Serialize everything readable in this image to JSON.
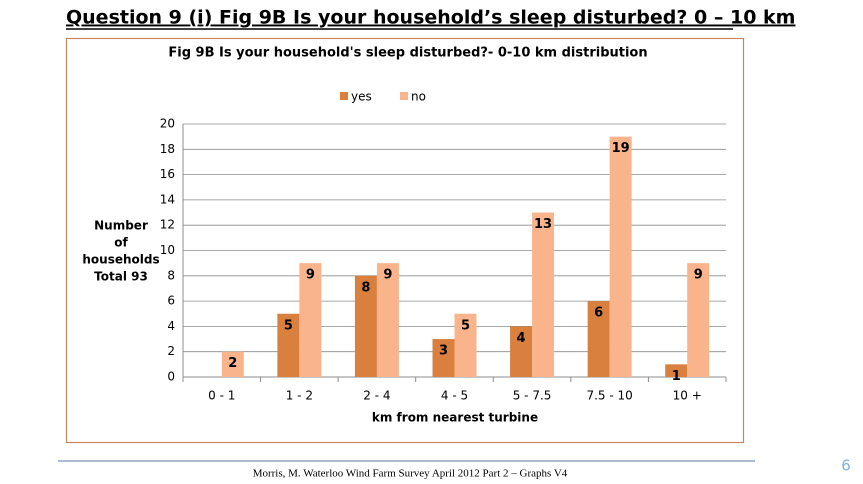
{
  "slide_title": "Question 9 (i) Fig 9B Is your household’s sleep disturbed?    0 – 10  km",
  "footer": "Morris, M.  Waterloo Wind Farm Survey April 2012 Part 2 – Graphs V4",
  "page_number": "6",
  "chart_data": {
    "type": "bar",
    "title": "Fig 9B   Is your household's sleep disturbed?-  0-10 km distribution",
    "xlabel": "km from nearest turbine",
    "ylabel": [
      "Number",
      "of",
      "households",
      "Total 93"
    ],
    "categories": [
      "0 - 1",
      "1 - 2",
      "2 - 4",
      "4 - 5",
      "5  - 7.5",
      "7.5 - 10",
      "10 +"
    ],
    "series": [
      {
        "name": "yes",
        "color": "#d9803e",
        "values": [
          null,
          5,
          8,
          3,
          4,
          6,
          1
        ]
      },
      {
        "name": "no",
        "color": "#f9b48c",
        "values": [
          2,
          9,
          9,
          5,
          13,
          19,
          9
        ]
      }
    ],
    "ylim": [
      0,
      20
    ],
    "yticks": [
      0,
      2,
      4,
      6,
      8,
      10,
      12,
      14,
      16,
      18,
      20
    ],
    "grid": true,
    "legend": "top"
  }
}
